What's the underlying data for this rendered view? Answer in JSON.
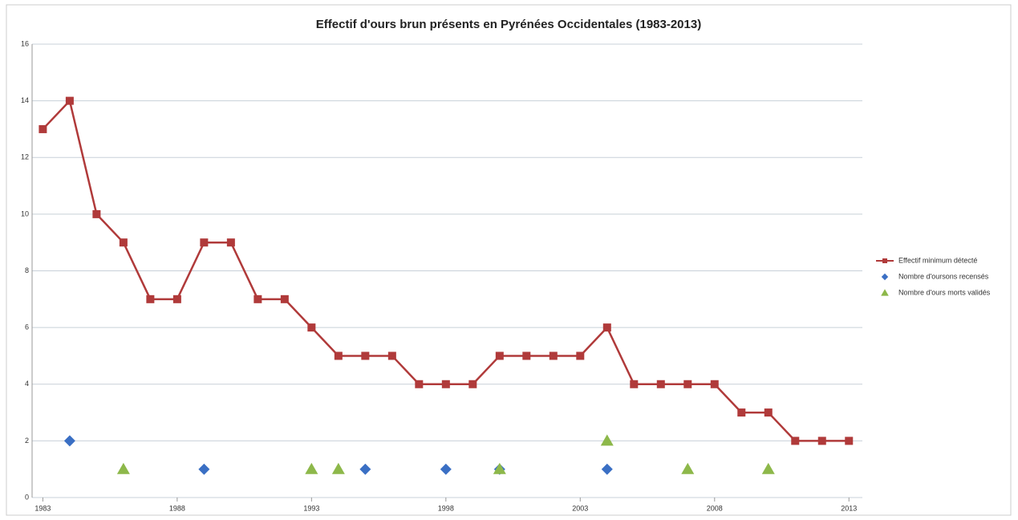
{
  "chart_data": {
    "type": "line",
    "title": "Effectif d'ours brun présents en Pyrénées Occidentales (1983-2013)",
    "x": [
      1983,
      1984,
      1985,
      1986,
      1987,
      1988,
      1989,
      1990,
      1991,
      1992,
      1993,
      1994,
      1995,
      1996,
      1997,
      1998,
      1999,
      2000,
      2001,
      2002,
      2003,
      2004,
      2005,
      2006,
      2007,
      2008,
      2009,
      2010,
      2011,
      2012,
      2013
    ],
    "series": [
      {
        "name": "Effectif minimum détecté",
        "type": "line",
        "marker": "square",
        "color": "#b03a3a",
        "values": [
          13,
          14,
          10,
          9,
          7,
          7,
          9,
          9,
          7,
          7,
          6,
          5,
          5,
          5,
          4,
          4,
          4,
          5,
          5,
          5,
          5,
          6,
          4,
          4,
          4,
          4,
          3,
          3,
          2,
          2,
          2
        ]
      },
      {
        "name": "Nombre d'oursons recensés",
        "type": "scatter",
        "marker": "diamond",
        "color": "#3a6fc4",
        "values": [
          null,
          2,
          null,
          null,
          null,
          null,
          1,
          null,
          null,
          null,
          null,
          null,
          1,
          null,
          null,
          1,
          null,
          1,
          null,
          null,
          null,
          1,
          null,
          null,
          null,
          null,
          null,
          null,
          null,
          null,
          null
        ]
      },
      {
        "name": "Nombre d'ours morts validés",
        "type": "scatter",
        "marker": "triangle",
        "color": "#8db84a",
        "values": [
          null,
          null,
          null,
          1,
          null,
          null,
          null,
          null,
          null,
          null,
          1,
          1,
          null,
          null,
          null,
          null,
          null,
          1,
          null,
          null,
          null,
          2,
          null,
          null,
          1,
          null,
          null,
          1,
          null,
          null,
          null
        ]
      }
    ],
    "xlim": [
      1982.6,
      2013.5
    ],
    "xticks": [
      1983,
      1988,
      1993,
      1998,
      2003,
      2008,
      2013
    ],
    "ylim": [
      0,
      16
    ],
    "yticks": [
      0,
      2,
      4,
      6,
      8,
      10,
      12,
      14,
      16
    ],
    "grid": true,
    "legend": "right"
  }
}
